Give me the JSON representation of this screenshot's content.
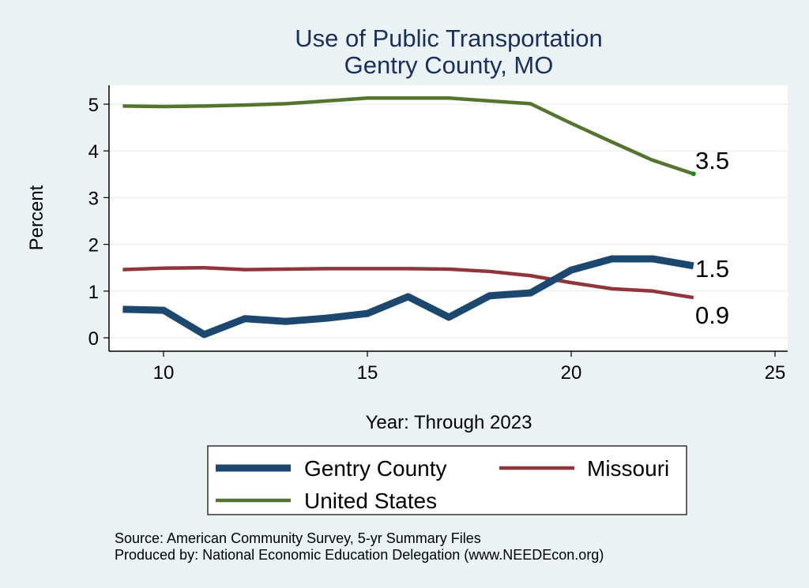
{
  "chart_data": {
    "type": "line",
    "title": "Use of Public Transportation",
    "subtitle": "Gentry County, MO",
    "xlabel": "Year: Through 2023",
    "ylabel": "Percent",
    "xlim": [
      9,
      25
    ],
    "ylim": [
      0,
      5.3
    ],
    "xticks": [
      10,
      15,
      20,
      25
    ],
    "yticks": [
      0,
      1,
      2,
      3,
      4,
      5
    ],
    "grid": true,
    "legend_position": "bottom",
    "x": [
      9,
      10,
      11,
      12,
      13,
      14,
      15,
      16,
      17,
      18,
      19,
      20,
      21,
      22,
      23
    ],
    "series": [
      {
        "name": "Gentry County",
        "color": "#1c4870",
        "end_label": "1.5",
        "values": [
          0.61,
          0.59,
          0.07,
          0.41,
          0.35,
          0.42,
          0.52,
          0.88,
          0.44,
          0.9,
          0.96,
          1.45,
          1.69,
          1.69,
          1.54
        ]
      },
      {
        "name": "Missouri",
        "color": "#90353b",
        "end_label": "0.9",
        "values": [
          1.46,
          1.49,
          1.5,
          1.46,
          1.47,
          1.48,
          1.48,
          1.48,
          1.47,
          1.42,
          1.33,
          1.18,
          1.05,
          1.0,
          0.86
        ]
      },
      {
        "name": "United States",
        "color": "#55752f",
        "end_label": "3.5",
        "values": [
          4.96,
          4.95,
          4.96,
          4.98,
          5.01,
          5.07,
          5.13,
          5.13,
          5.13,
          5.07,
          5.01,
          4.59,
          4.19,
          3.8,
          3.51
        ]
      }
    ],
    "notes": [
      "Source: American Community Survey, 5-yr Summary Files",
      "Produced by: National Economic Education Delegation (www.NEEDEcon.org)"
    ]
  }
}
